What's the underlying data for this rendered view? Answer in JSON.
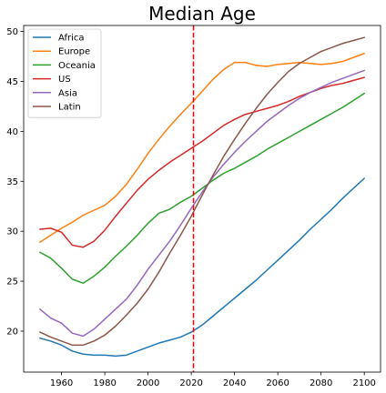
{
  "chart_data": {
    "type": "line",
    "title": "Median Age",
    "xlabel": "",
    "ylabel": "",
    "xlim": [
      1942.5,
      2107.5
    ],
    "ylim": [
      15.9,
      50.6
    ],
    "x_ticks": [
      1960,
      1980,
      2000,
      2020,
      2040,
      2060,
      2080,
      2100
    ],
    "y_ticks": [
      20,
      25,
      30,
      35,
      40,
      45,
      50
    ],
    "grid": false,
    "legend_location": "top-left",
    "annotations": [
      {
        "type": "vertical-dashed-line",
        "x": 2021,
        "color": "#ff0000"
      }
    ],
    "x": [
      1950,
      1955,
      1960,
      1965,
      1970,
      1975,
      1980,
      1985,
      1990,
      1995,
      2000,
      2005,
      2010,
      2015,
      2020,
      2025,
      2030,
      2035,
      2040,
      2045,
      2050,
      2055,
      2060,
      2065,
      2070,
      2075,
      2080,
      2085,
      2090,
      2095,
      2100
    ],
    "series": [
      {
        "name": "Africa",
        "color": "#1f77b4",
        "values": [
          19.3,
          19.0,
          18.6,
          18.0,
          17.7,
          17.6,
          17.6,
          17.5,
          17.6,
          18.0,
          18.4,
          18.8,
          19.1,
          19.4,
          19.9,
          20.6,
          21.5,
          22.4,
          23.3,
          24.2,
          25.1,
          26.1,
          27.1,
          28.1,
          29.1,
          30.2,
          31.2,
          32.2,
          33.3,
          34.3,
          35.3
        ]
      },
      {
        "name": "Europe",
        "color": "#ff7f0e",
        "values": [
          28.9,
          29.6,
          30.3,
          30.9,
          31.6,
          32.1,
          32.6,
          33.5,
          34.7,
          36.2,
          37.8,
          39.2,
          40.5,
          41.7,
          42.8,
          44.0,
          45.2,
          46.2,
          46.9,
          46.9,
          46.6,
          46.5,
          46.7,
          46.8,
          46.9,
          46.8,
          46.7,
          46.8,
          47.0,
          47.4,
          47.8
        ]
      },
      {
        "name": "Oceania",
        "color": "#2ca02c",
        "values": [
          27.9,
          27.3,
          26.3,
          25.2,
          24.8,
          25.5,
          26.4,
          27.5,
          28.5,
          29.6,
          30.8,
          31.8,
          32.2,
          32.9,
          33.5,
          34.3,
          35.1,
          35.8,
          36.3,
          36.9,
          37.5,
          38.2,
          38.8,
          39.4,
          40.0,
          40.6,
          41.2,
          41.8,
          42.4,
          43.1,
          43.8
        ]
      },
      {
        "name": "US",
        "color": "#d62728",
        "values": [
          30.2,
          30.3,
          29.9,
          28.6,
          28.4,
          29.0,
          30.1,
          31.5,
          32.8,
          34.1,
          35.2,
          36.1,
          36.9,
          37.6,
          38.3,
          39.0,
          39.8,
          40.6,
          41.2,
          41.7,
          42.0,
          42.3,
          42.6,
          43.0,
          43.5,
          43.9,
          44.3,
          44.6,
          44.8,
          45.1,
          45.4
        ]
      },
      {
        "name": "Asia",
        "color": "#9467bd",
        "values": [
          22.2,
          21.3,
          20.8,
          19.8,
          19.5,
          20.2,
          21.2,
          22.2,
          23.2,
          24.6,
          26.2,
          27.6,
          29.0,
          30.6,
          32.3,
          33.9,
          35.4,
          36.7,
          37.9,
          39.0,
          40.0,
          41.0,
          41.8,
          42.6,
          43.3,
          43.9,
          44.4,
          44.9,
          45.3,
          45.7,
          46.1
        ]
      },
      {
        "name": "Latin",
        "color": "#8c564b",
        "values": [
          19.9,
          19.4,
          19.0,
          18.6,
          18.6,
          19.0,
          19.6,
          20.5,
          21.6,
          22.8,
          24.2,
          25.9,
          27.8,
          29.6,
          31.5,
          33.6,
          35.6,
          37.5,
          39.2,
          40.8,
          42.3,
          43.7,
          44.9,
          46.0,
          46.8,
          47.4,
          48.0,
          48.4,
          48.8,
          49.1,
          49.4
        ]
      }
    ]
  }
}
